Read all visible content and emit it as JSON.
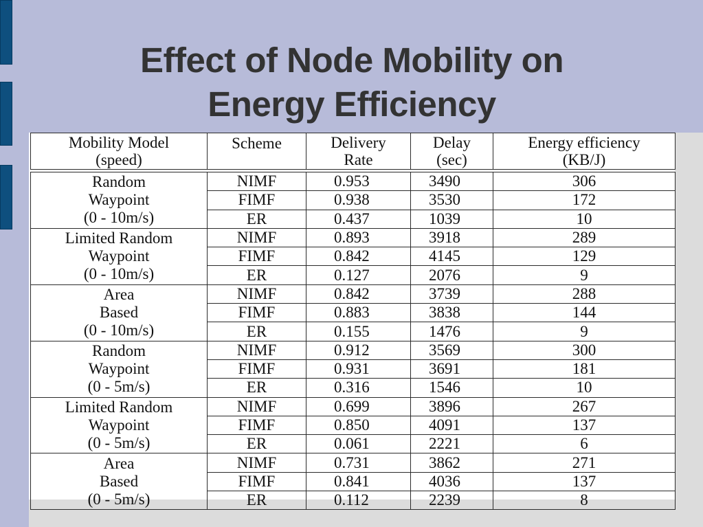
{
  "slide": {
    "title_line1": "Effect of Node Mobility on",
    "title_line2": "Energy Efficiency"
  },
  "table": {
    "headers": [
      [
        "Mobility Model",
        "(speed)"
      ],
      [
        "Scheme",
        ""
      ],
      [
        "Delivery",
        "Rate"
      ],
      [
        "Delay",
        "(sec)"
      ],
      [
        "Energy efficiency",
        "(KB/J)"
      ]
    ],
    "groups": [
      {
        "model": [
          "Random",
          "Waypoint",
          "(0 - 10m/s)"
        ],
        "rows": [
          {
            "scheme": "NIMF",
            "delivery": "0.953",
            "delay": "3490",
            "energy": "306"
          },
          {
            "scheme": "FIMF",
            "delivery": "0.938",
            "delay": "3530",
            "energy": "172"
          },
          {
            "scheme": "ER",
            "delivery": "0.437",
            "delay": "1039",
            "energy": "10"
          }
        ]
      },
      {
        "model": [
          "Limited Random",
          "Waypoint",
          "(0 - 10m/s)"
        ],
        "rows": [
          {
            "scheme": "NIMF",
            "delivery": "0.893",
            "delay": "3918",
            "energy": "289"
          },
          {
            "scheme": "FIMF",
            "delivery": "0.842",
            "delay": "4145",
            "energy": "129"
          },
          {
            "scheme": "ER",
            "delivery": "0.127",
            "delay": "2076",
            "energy": "9"
          }
        ]
      },
      {
        "model": [
          "Area",
          "Based",
          "(0 - 10m/s)"
        ],
        "rows": [
          {
            "scheme": "NIMF",
            "delivery": "0.842",
            "delay": "3739",
            "energy": "288"
          },
          {
            "scheme": "FIMF",
            "delivery": "0.883",
            "delay": "3838",
            "energy": "144"
          },
          {
            "scheme": "ER",
            "delivery": "0.155",
            "delay": "1476",
            "energy": "9"
          }
        ]
      },
      {
        "model": [
          "Random",
          "Waypoint",
          "(0 - 5m/s)"
        ],
        "rows": [
          {
            "scheme": "NIMF",
            "delivery": "0.912",
            "delay": "3569",
            "energy": "300"
          },
          {
            "scheme": "FIMF",
            "delivery": "0.931",
            "delay": "3691",
            "energy": "181"
          },
          {
            "scheme": "ER",
            "delivery": "0.316",
            "delay": "1546",
            "energy": "10"
          }
        ]
      },
      {
        "model": [
          "Limited Random",
          "Waypoint",
          "(0 - 5m/s)"
        ],
        "rows": [
          {
            "scheme": "NIMF",
            "delivery": "0.699",
            "delay": "3896",
            "energy": "267"
          },
          {
            "scheme": "FIMF",
            "delivery": "0.850",
            "delay": "4091",
            "energy": "137"
          },
          {
            "scheme": "ER",
            "delivery": "0.061",
            "delay": "2221",
            "energy": "6"
          }
        ]
      },
      {
        "model": [
          "Area",
          "Based",
          "(0 - 5m/s)"
        ],
        "rows": [
          {
            "scheme": "NIMF",
            "delivery": "0.731",
            "delay": "3862",
            "energy": "271"
          },
          {
            "scheme": "FIMF",
            "delivery": "0.841",
            "delay": "4036",
            "energy": "137"
          },
          {
            "scheme": "ER",
            "delivery": "0.112",
            "delay": "2239",
            "energy": "8"
          }
        ]
      }
    ]
  },
  "colors": {
    "slide_background": "#b7bbd9",
    "side_bar": "#0e4f7e",
    "title_text": "#333333",
    "table_background": "#ffffff",
    "lower_background": "#dcdcdc"
  }
}
